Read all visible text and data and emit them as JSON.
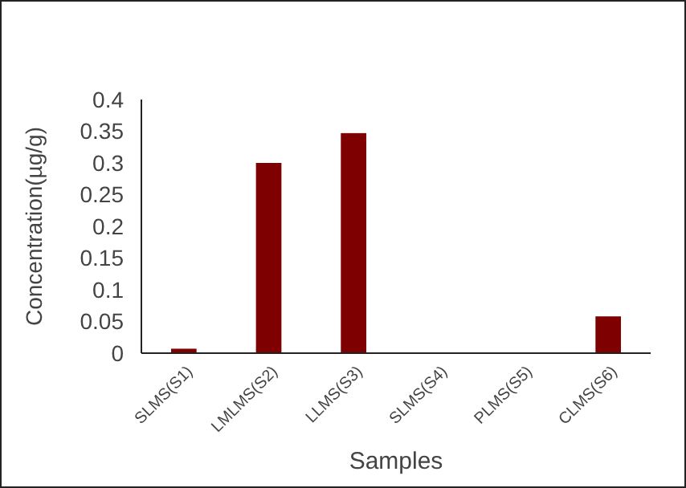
{
  "chart_data": {
    "type": "bar",
    "xlabel": "Samples",
    "ylabel": "Concentration(µg/g)",
    "categories": [
      "SLMS(S1)",
      "LMLMS(S2)",
      "LLMS(S3)",
      "SLMS(S4)",
      "PLMS(S5)",
      "CLMS(S6)"
    ],
    "values": [
      0.007,
      0.3,
      0.347,
      0,
      0,
      0.058
    ],
    "color": "#7f0000",
    "ylim": [
      0,
      0.4
    ],
    "yticks": [
      0,
      0.05,
      0.1,
      0.15,
      0.2,
      0.25,
      0.3,
      0.35,
      0.4
    ],
    "grid": false
  }
}
